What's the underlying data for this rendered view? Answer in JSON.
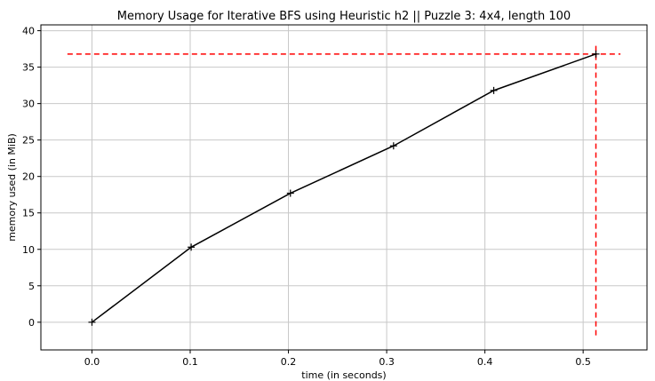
{
  "chart_data": {
    "type": "line",
    "title": "Memory Usage for Iterative BFS using Heuristic h2 || Puzzle 3: 4x4, length 100",
    "xlabel": "time (in seconds)",
    "ylabel": "memory used (in MiB)",
    "xlim": [
      -0.052,
      0.565
    ],
    "ylim": [
      -3.8,
      40.8
    ],
    "xticks": [
      0.0,
      0.1,
      0.2,
      0.3,
      0.4,
      0.5
    ],
    "xtick_labels": [
      "0.0",
      "0.1",
      "0.2",
      "0.3",
      "0.4",
      "0.5"
    ],
    "yticks": [
      0,
      5,
      10,
      15,
      20,
      25,
      30,
      35,
      40
    ],
    "ytick_labels": [
      "0",
      "5",
      "10",
      "15",
      "20",
      "25",
      "30",
      "35",
      "40"
    ],
    "grid": true,
    "series": [
      {
        "x": [
          0.0,
          0.101,
          0.202,
          0.307,
          0.409,
          0.513
        ],
        "y": [
          0.0,
          10.3,
          17.7,
          24.2,
          31.8,
          36.8
        ],
        "color": "#000000",
        "marker": "+"
      }
    ],
    "reference_lines": [
      {
        "orientation": "horizontal",
        "value": 36.8,
        "from": -0.025,
        "to": 0.538,
        "color": "#ff0000",
        "style": "dashed"
      },
      {
        "orientation": "vertical",
        "value": 0.513,
        "from": -1.8,
        "to": 38.3,
        "color": "#ff0000",
        "style": "dashed"
      }
    ]
  }
}
